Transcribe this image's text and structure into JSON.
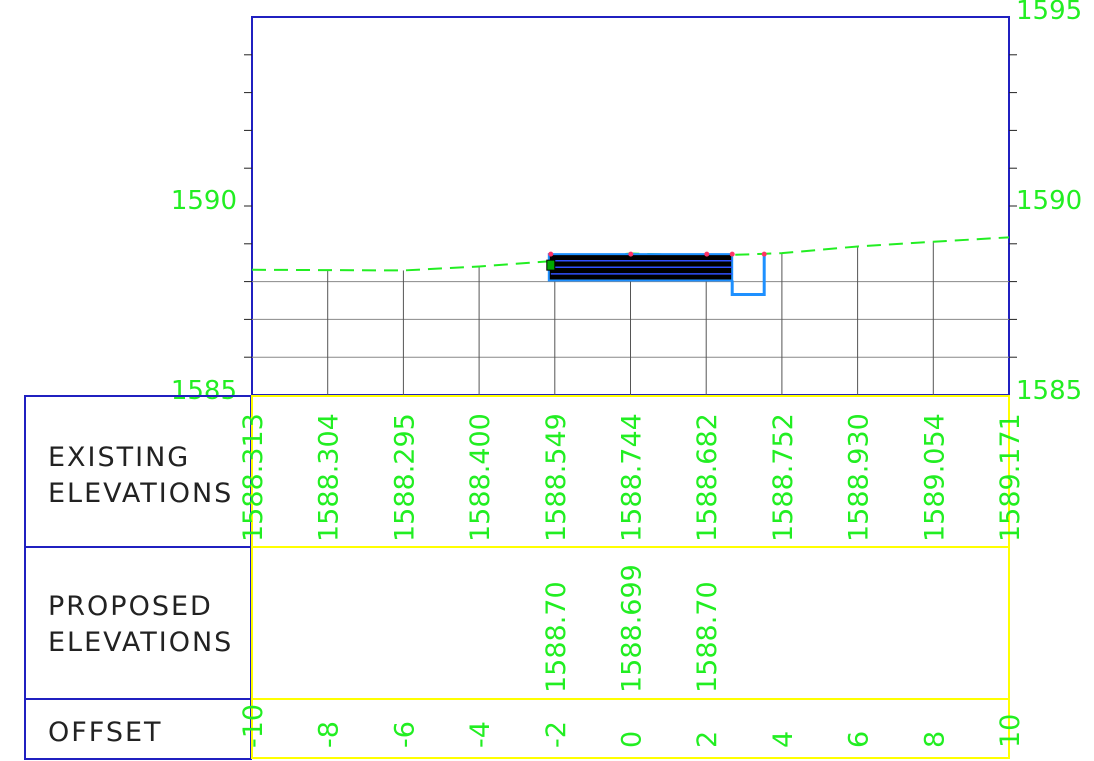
{
  "section": {
    "offsets": [
      -10,
      -8,
      -6,
      -4,
      -2,
      0,
      2,
      4,
      6,
      8,
      10
    ],
    "offset_labels": [
      "-10",
      "-8",
      "-6",
      "-4",
      "-2",
      "0",
      "2",
      "4",
      "6",
      "8",
      "10"
    ],
    "existing_elevations": [
      "1588.313",
      "1588.304",
      "1588.295",
      "1588.400",
      "1588.549",
      "1588.744",
      "1588.682",
      "1588.752",
      "1588.930",
      "1589.054",
      "1589.171"
    ],
    "proposed_elevations": [
      {
        "offset": -2,
        "label": "1588.70"
      },
      {
        "offset": 0,
        "label": "1588.699"
      },
      {
        "offset": 2,
        "label": "1588.70"
      }
    ],
    "elevation_range": [
      1585,
      1595
    ],
    "elevation_ticks": {
      "left": [
        "1590",
        "1585"
      ],
      "right": [
        "1595",
        "1590",
        "1585"
      ]
    }
  },
  "table": {
    "row1_line1": "EXISTING",
    "row1_line2": "ELEVATIONS",
    "row2_line1": "PROPOSED",
    "row2_line2": "ELEVATIONS",
    "row3": "OFFSET"
  },
  "colors": {
    "frame": "#2020c0",
    "label_box": "#ffff00",
    "text": "#22ee22",
    "ground": "#22ee22",
    "structure": "#1e90ff"
  }
}
